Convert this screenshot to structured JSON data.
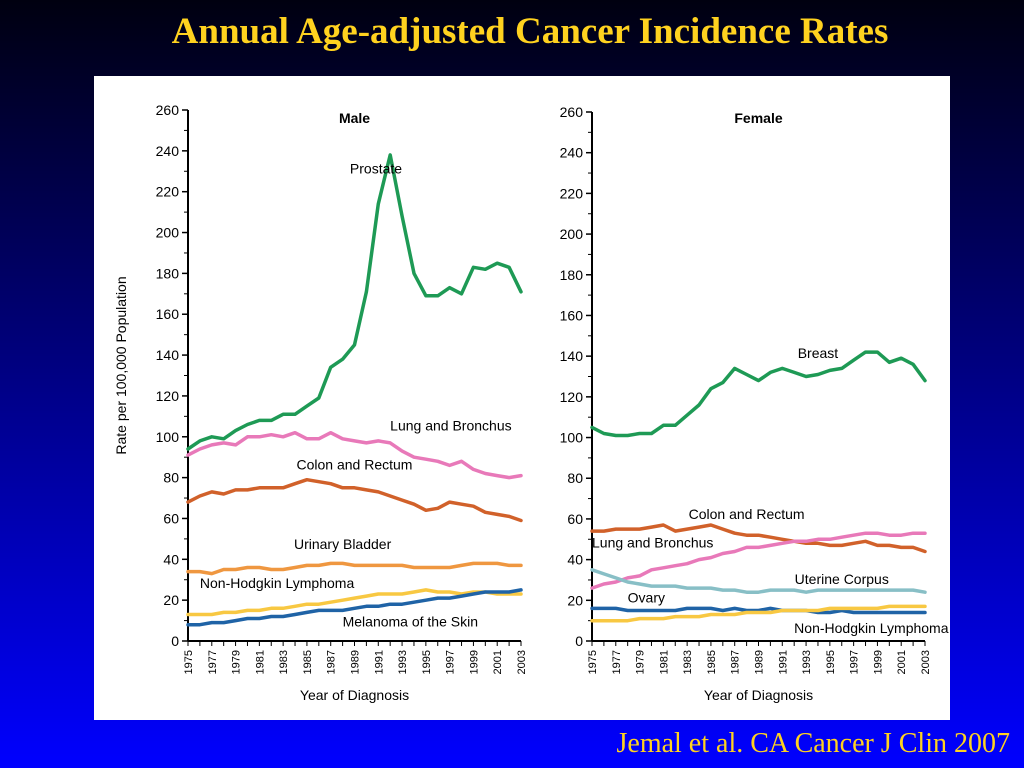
{
  "slide": {
    "title": "Annual Age-adjusted Cancer Incidence Rates",
    "citation": "Jemal et al. CA Cancer J Clin 2007"
  },
  "colors": {
    "background_top": "#000010",
    "background_bottom": "#0000ff",
    "title_text": "#ffd21f",
    "green": "#1e9a55",
    "pink": "#e879b9",
    "orange_dark": "#d1612a",
    "orange": "#ef9740",
    "yellow": "#f8c842",
    "blue": "#1f63a6",
    "teal": "#88bfc6"
  },
  "chart_data": [
    {
      "type": "line",
      "title": "Male",
      "xlabel": "Year of Diagnosis",
      "ylabel": "Rate per 100,000 Population",
      "ylim": [
        0,
        260
      ],
      "xlim": [
        1975,
        2003
      ],
      "yticks": [
        0,
        20,
        40,
        60,
        80,
        100,
        120,
        140,
        160,
        180,
        200,
        220,
        240,
        260
      ],
      "xticks": [
        1975,
        1977,
        1979,
        1981,
        1983,
        1985,
        1987,
        1989,
        1991,
        1993,
        1995,
        1997,
        1999,
        2001,
        2003
      ],
      "grid": false,
      "legend": "inline labels",
      "series": [
        {
          "name": "Prostate",
          "color": "#1e9a55",
          "label_at": [
            1993,
            229
          ],
          "label_anchor": "end",
          "values": [
            94,
            98,
            100,
            99,
            103,
            106,
            108,
            108,
            111,
            111,
            115,
            119,
            134,
            138,
            145,
            171,
            214,
            238,
            208,
            180,
            169,
            169,
            173,
            170,
            183,
            182,
            185,
            183,
            171
          ]
        },
        {
          "name": "Lung and Bronchus",
          "color": "#e879b9",
          "label_at": [
            1992,
            103
          ],
          "label_anchor": "start",
          "values": [
            91,
            94,
            96,
            97,
            96,
            100,
            100,
            101,
            100,
            102,
            99,
            99,
            102,
            99,
            98,
            97,
            98,
            97,
            93,
            90,
            89,
            88,
            86,
            88,
            84,
            82,
            81,
            80,
            81
          ]
        },
        {
          "name": "Colon and Rectum",
          "color": "#d1612a",
          "label_at": [
            1989,
            84
          ],
          "label_anchor": "middle",
          "values": [
            68,
            71,
            73,
            72,
            74,
            74,
            75,
            75,
            75,
            77,
            79,
            78,
            77,
            75,
            75,
            74,
            73,
            71,
            69,
            67,
            64,
            65,
            68,
            67,
            66,
            63,
            62,
            61,
            59
          ]
        },
        {
          "name": "Urinary Bladder",
          "color": "#ef9740",
          "label_at": [
            1988,
            45
          ],
          "label_anchor": "middle",
          "values": [
            34,
            34,
            33,
            35,
            35,
            36,
            36,
            35,
            35,
            36,
            37,
            37,
            38,
            38,
            37,
            37,
            37,
            37,
            37,
            36,
            36,
            36,
            36,
            37,
            38,
            38,
            38,
            37,
            37
          ]
        },
        {
          "name": "Non-Hodgkin Lymphoma",
          "color": "#f8c842",
          "label_at": [
            1976,
            26
          ],
          "label_anchor": "start",
          "values": [
            13,
            13,
            13,
            14,
            14,
            15,
            15,
            16,
            16,
            17,
            18,
            18,
            19,
            20,
            21,
            22,
            23,
            23,
            23,
            24,
            25,
            24,
            24,
            23,
            24,
            24,
            23,
            23,
            23
          ]
        },
        {
          "name": "Melanoma of the Skin",
          "color": "#1f63a6",
          "label_at": [
            1988,
            7
          ],
          "label_anchor": "start",
          "values": [
            8,
            8,
            9,
            9,
            10,
            11,
            11,
            12,
            12,
            13,
            14,
            15,
            15,
            15,
            16,
            17,
            17,
            18,
            18,
            19,
            20,
            21,
            21,
            22,
            23,
            24,
            24,
            24,
            25
          ]
        }
      ]
    },
    {
      "type": "line",
      "title": "Female",
      "xlabel": "Year of Diagnosis",
      "ylabel": "",
      "ylim": [
        0,
        260
      ],
      "xlim": [
        1975,
        2003
      ],
      "yticks": [
        0,
        20,
        40,
        60,
        80,
        100,
        120,
        140,
        160,
        180,
        200,
        220,
        240,
        260
      ],
      "xticks": [
        1975,
        1977,
        1979,
        1981,
        1983,
        1985,
        1987,
        1989,
        1991,
        1993,
        1995,
        1997,
        1999,
        2001,
        2003
      ],
      "grid": false,
      "legend": "inline labels",
      "series": [
        {
          "name": "Breast",
          "color": "#1e9a55",
          "label_at": [
            1994,
            139
          ],
          "label_anchor": "middle",
          "values": [
            105,
            102,
            101,
            101,
            102,
            102,
            106,
            106,
            111,
            116,
            124,
            127,
            134,
            131,
            128,
            132,
            134,
            132,
            130,
            131,
            133,
            134,
            138,
            142,
            142,
            137,
            139,
            136,
            128
          ]
        },
        {
          "name": "Colon and Rectum",
          "color": "#d1612a",
          "label_at": [
            1988,
            60
          ],
          "label_anchor": "middle",
          "values": [
            54,
            54,
            55,
            55,
            55,
            56,
            57,
            54,
            55,
            56,
            57,
            55,
            53,
            52,
            52,
            51,
            50,
            49,
            48,
            48,
            47,
            47,
            48,
            49,
            47,
            47,
            46,
            46,
            44
          ]
        },
        {
          "name": "Lung and Bronchus",
          "color": "#e879b9",
          "label_at": [
            1975,
            46
          ],
          "label_anchor": "start",
          "values": [
            26,
            28,
            29,
            31,
            32,
            35,
            36,
            37,
            38,
            40,
            41,
            43,
            44,
            46,
            46,
            47,
            48,
            49,
            49,
            50,
            50,
            51,
            52,
            53,
            53,
            52,
            52,
            53,
            53
          ]
        },
        {
          "name": "Uterine Corpus",
          "color": "#88bfc6",
          "label_at": [
            1996,
            28
          ],
          "label_anchor": "middle",
          "values": [
            35,
            33,
            31,
            29,
            28,
            27,
            27,
            27,
            26,
            26,
            26,
            25,
            25,
            24,
            24,
            25,
            25,
            25,
            24,
            25,
            25,
            25,
            25,
            25,
            25,
            25,
            25,
            25,
            24
          ]
        },
        {
          "name": "Ovary",
          "color": "#1f63a6",
          "label_at": [
            1978,
            19
          ],
          "label_anchor": "start",
          "values": [
            16,
            16,
            16,
            15,
            15,
            15,
            15,
            15,
            16,
            16,
            16,
            15,
            16,
            15,
            15,
            16,
            15,
            15,
            15,
            14,
            14,
            15,
            14,
            14,
            14,
            14,
            14,
            14,
            14
          ]
        },
        {
          "name": "Non-Hodgkin Lymphoma",
          "color": "#f8c842",
          "label_at": [
            1992,
            4
          ],
          "label_anchor": "start",
          "values": [
            10,
            10,
            10,
            10,
            11,
            11,
            11,
            12,
            12,
            12,
            13,
            13,
            13,
            14,
            14,
            14,
            15,
            15,
            15,
            15,
            16,
            16,
            16,
            16,
            16,
            17,
            17,
            17,
            17
          ]
        }
      ]
    }
  ]
}
